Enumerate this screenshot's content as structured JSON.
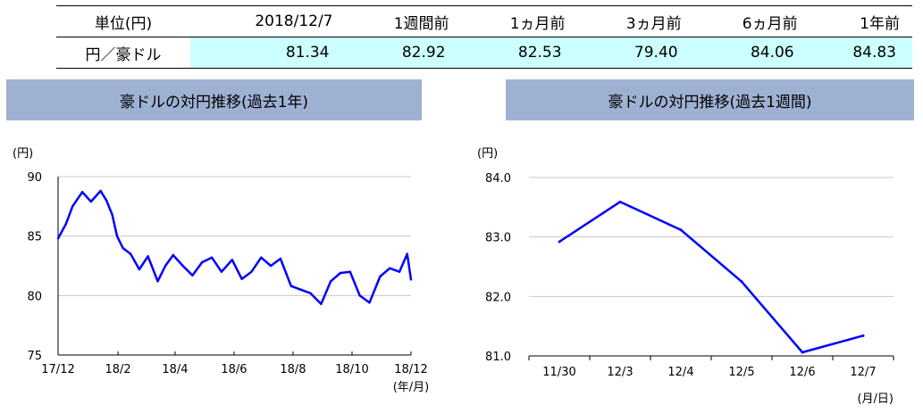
{
  "table": {
    "header_unit": "単位(円)",
    "columns": [
      "2018/12/7",
      "1週間前",
      "1ヵ月前",
      "3ヵ月前",
      "6ヵ月前",
      "1年前"
    ],
    "row_label": "円／豪ドル",
    "values": [
      "81.34",
      "82.92",
      "82.53",
      "79.40",
      "84.06",
      "84.83"
    ]
  },
  "chart_data": [
    {
      "type": "line",
      "title": "豪ドルの対円推移(過去1年)",
      "yunit": "(円)",
      "xunit": "(年/月)",
      "xtick_labels": [
        "17/12",
        "18/2",
        "18/4",
        "18/6",
        "18/8",
        "18/10",
        "18/12"
      ],
      "ytick_labels": [
        "90",
        "85",
        "80",
        "75"
      ],
      "ylim": [
        75,
        90
      ],
      "grid": true,
      "color": "#0000ff",
      "series": [
        {
          "x": [
            "2017-12-07",
            "2017-12-15",
            "2017-12-22",
            "2018-01-01",
            "2018-01-10",
            "2018-01-20",
            "2018-01-26",
            "2018-02-01",
            "2018-02-06",
            "2018-02-12",
            "2018-02-20",
            "2018-03-01",
            "2018-03-10",
            "2018-03-20",
            "2018-03-28",
            "2018-04-05",
            "2018-04-15",
            "2018-04-25",
            "2018-05-05",
            "2018-05-15",
            "2018-05-25",
            "2018-06-05",
            "2018-06-15",
            "2018-06-25",
            "2018-07-05",
            "2018-07-15",
            "2018-07-25",
            "2018-08-05",
            "2018-08-15",
            "2018-08-25",
            "2018-09-05",
            "2018-09-15",
            "2018-09-25",
            "2018-10-05",
            "2018-10-15",
            "2018-10-25",
            "2018-11-05",
            "2018-11-15",
            "2018-11-25",
            "2018-12-03",
            "2018-12-07"
          ],
          "values": [
            84.8,
            86.0,
            87.5,
            88.7,
            87.9,
            88.8,
            88.0,
            86.8,
            85.0,
            84.0,
            83.5,
            82.2,
            83.3,
            81.2,
            82.5,
            83.4,
            82.5,
            81.7,
            82.8,
            83.2,
            82.0,
            83.0,
            81.4,
            82.0,
            83.2,
            82.5,
            83.1,
            80.8,
            80.5,
            80.2,
            79.3,
            81.2,
            81.9,
            82.0,
            80.0,
            79.4,
            81.6,
            82.3,
            82.0,
            83.5,
            81.34
          ]
        }
      ]
    },
    {
      "type": "line",
      "title": "豪ドルの対円推移(過去1週間)",
      "yunit": "(円)",
      "xunit": "(月/日)",
      "categories": [
        "11/30",
        "12/3",
        "12/4",
        "12/5",
        "12/6",
        "12/7"
      ],
      "ytick_labels": [
        "84.0",
        "83.0",
        "82.0",
        "81.0"
      ],
      "ylim": [
        81.0,
        84.0
      ],
      "grid": true,
      "color": "#0000ff",
      "series": [
        {
          "values": [
            82.92,
            83.59,
            83.12,
            82.25,
            81.06,
            81.34
          ]
        }
      ]
    }
  ]
}
